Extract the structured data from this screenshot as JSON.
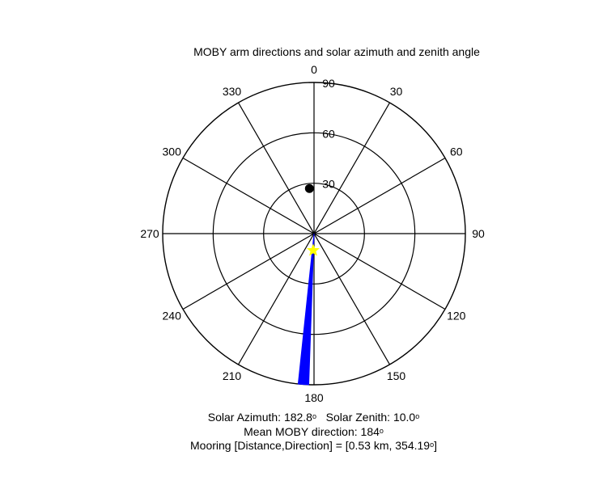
{
  "chart_data": {
    "type": "polar",
    "title": "MOBY arm directions and solar azimuth and zenith angle",
    "angle_ticks": [
      "0",
      "30",
      "60",
      "90",
      "120",
      "150",
      "180",
      "210",
      "240",
      "270",
      "300",
      "330"
    ],
    "right_label": "90",
    "radial_ticks": [
      "30",
      "60",
      "90"
    ],
    "radial_max": 90,
    "angle_convention": "0 at top, clockwise",
    "colors": {
      "moby_sector": "#0000ff",
      "sun_marker": "#ffff00",
      "mooring_marker": "#000000"
    },
    "moby_sector": {
      "angle_from": 182,
      "angle_to": 186,
      "r_from": 0,
      "r_to": 90
    },
    "sun": {
      "azimuth": 182.8,
      "zenith": 10.0
    },
    "mooring_point": {
      "angle": 354.19,
      "r": 27
    }
  },
  "footer": {
    "solar_azimuth_label": "Solar Azimuth:",
    "solar_azimuth_value": "182.8",
    "solar_zenith_label": "Solar Zenith:",
    "solar_zenith_value": "10.0",
    "mean_direction_label": "Mean MOBY direction:",
    "mean_direction_value": "184",
    "mooring_text": "Mooring [Distance,Direction] = [0.53 km, 354.19",
    "mooring_close": "]",
    "degree_symbol": "o"
  }
}
